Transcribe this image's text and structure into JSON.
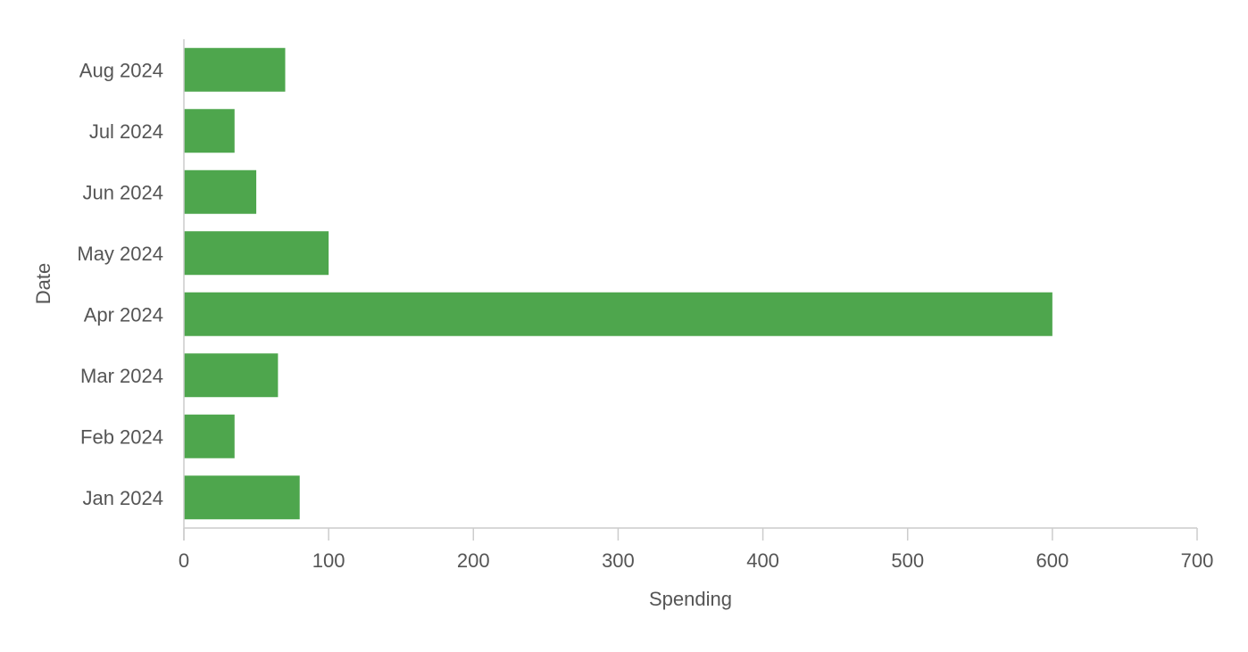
{
  "chart_data": {
    "type": "bar",
    "orientation": "horizontal",
    "categories": [
      "Jan 2024",
      "Feb 2024",
      "Mar 2024",
      "Apr 2024",
      "May 2024",
      "Jun 2024",
      "Jul 2024",
      "Aug 2024"
    ],
    "series": [
      {
        "values": [
          80,
          35,
          65,
          600,
          100,
          50,
          35,
          70
        ]
      }
    ],
    "xlabel": "Spending",
    "ylabel": "Date",
    "xlim": [
      0,
      700
    ],
    "xticks": [
      "0",
      "100",
      "200",
      "300",
      "400",
      "500",
      "600",
      "700"
    ],
    "grid": false,
    "legend": "none",
    "colors": {
      "bar": "#4ea64d",
      "axis": "#cccccc",
      "text": "#555555"
    }
  }
}
